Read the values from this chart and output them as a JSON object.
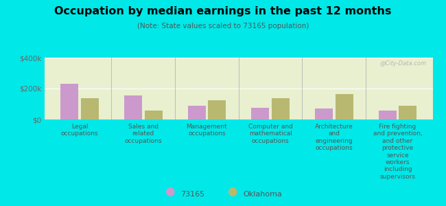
{
  "title": "Occupation by median earnings in the past 12 months",
  "subtitle": "(Note: State values scaled to 73165 population)",
  "background_color": "#00e8e8",
  "plot_bg_color": "#e8f0d0",
  "categories": [
    "Legal\noccupations",
    "Sales and\nrelated\noccupations",
    "Management\noccupations",
    "Computer and\nmathematical\noccupations",
    "Architecture\nand\nengineering\noccupations",
    "Fire fighting\nand prevention,\nand other\nprotective\nservice\nworkers\nincluding\nsupervisors"
  ],
  "values_73165": [
    230000,
    155000,
    90000,
    75000,
    70000,
    60000
  ],
  "values_oklahoma": [
    140000,
    60000,
    125000,
    140000,
    165000,
    90000
  ],
  "color_73165": "#cc99cc",
  "color_oklahoma": "#b8b870",
  "ylim": [
    0,
    400000
  ],
  "yticks": [
    0,
    200000,
    400000
  ],
  "ytick_labels": [
    "$0",
    "$200k",
    "$400k"
  ],
  "legend_label_73165": "73165",
  "legend_label_oklahoma": "Oklahoma",
  "watermark": "@City-Data.com",
  "bar_width": 0.28,
  "bar_gap": 0.04
}
